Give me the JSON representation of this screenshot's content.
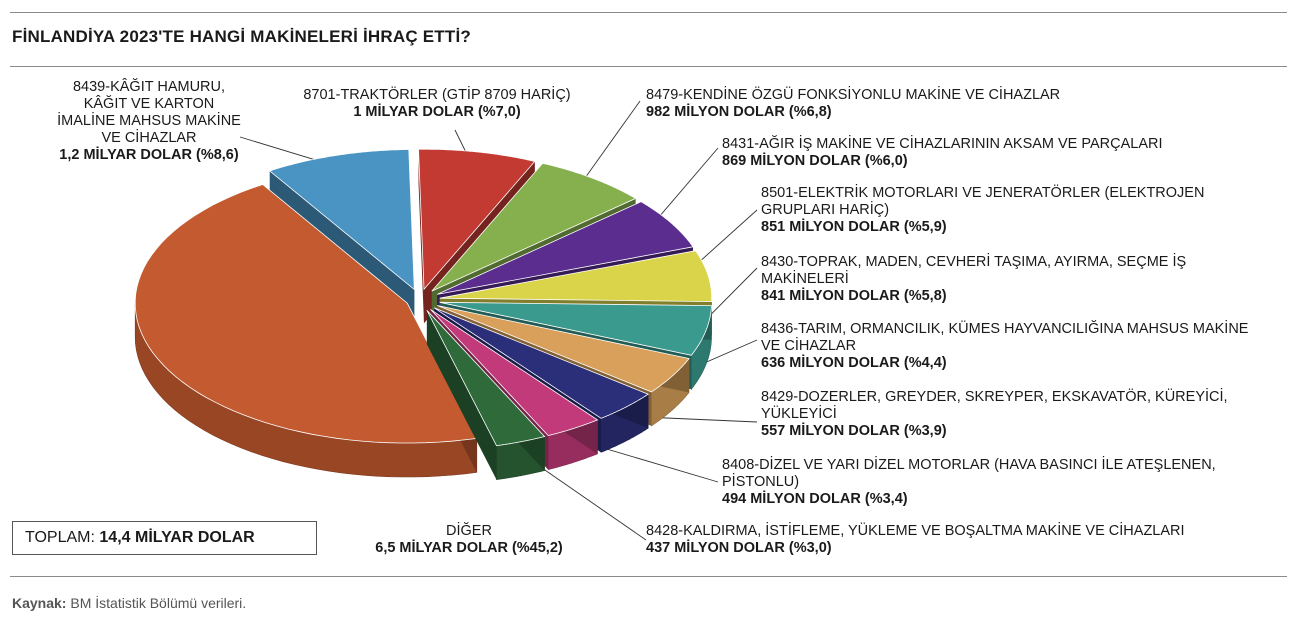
{
  "title": "FİNLANDİYA 2023'TE HANGİ MAKİNELERİ İHRAÇ ETTİ?",
  "total": {
    "label": "TOPLAM:",
    "value": "14,4 MİLYAR DOLAR"
  },
  "source": {
    "label": "Kaynak:",
    "text": "BM İstatistik Bölümü verileri."
  },
  "chart_data": {
    "type": "pie",
    "title": "FİNLANDİYA 2023'TE HANGİ MAKİNELERİ İHRAÇ ETTİ?",
    "unit": "USD",
    "slices": [
      {
        "name": "8701-TRAKTÖRLER (GTİP 8709 HARİÇ)",
        "value_label": "1 MİLYAR DOLAR (%7,0)",
        "value": 1.0,
        "percent": 7.0,
        "color": "#c33a32"
      },
      {
        "name": "8479-KENDİNE ÖZGÜ FONKSİYONLU MAKİNE VE CİHAZLAR",
        "value_label": "982 MİLYON DOLAR (%6,8)",
        "value": 0.982,
        "percent": 6.8,
        "color": "#86b04e"
      },
      {
        "name": "8431-AĞIR İŞ MAKİNE VE CİHAZLARININ AKSAM VE PARÇALARI",
        "value_label": "869 MİLYON DOLAR (%6,0)",
        "value": 0.869,
        "percent": 6.0,
        "color": "#5a2d8f"
      },
      {
        "name": "8501-ELEKTRİK MOTORLARI VE JENERATÖRLER (ELEKTROJEN GRUPLARI HARİÇ)",
        "value_label": "851 MİLYON DOLAR (%5,9)",
        "value": 0.851,
        "percent": 5.9,
        "color": "#d9d44a"
      },
      {
        "name": "8430-TOPRAK, MADEN, CEVHERİ TAŞIMA, AYIRMA, SEÇME İŞ MAKİNELERİ",
        "value_label": "841 MİLYON DOLAR (%5,8)",
        "value": 0.841,
        "percent": 5.8,
        "color": "#3a9a8e"
      },
      {
        "name": "8436-TARIM, ORMANCILIK, KÜMES HAYVANCILIĞINA MAHSUS MAKİNE VE CİHAZLAR",
        "value_label": "636 MİLYON DOLAR (%4,4)",
        "value": 0.636,
        "percent": 4.4,
        "color": "#d8a05a"
      },
      {
        "name": "8429-DOZERLER, GREYDER, SKREYPER, EKSKAVATÖR, KÜREYİCİ, YÜKLEYİCİ",
        "value_label": "557 MİLYON DOLAR (%3,9)",
        "value": 0.557,
        "percent": 3.9,
        "color": "#2b2f7a"
      },
      {
        "name": "8408-DİZEL VE YARI DİZEL MOTORLAR (HAVA BASINCI İLE ATEŞLENEN, PİSTONLU)",
        "value_label": "494 MİLYON DOLAR (%3,4)",
        "value": 0.494,
        "percent": 3.4,
        "color": "#c23a7a"
      },
      {
        "name": "8428-KALDIRMA, İSTİFLEME, YÜKLEME VE BOŞALTMA MAKİNE VE CİHAZLARI",
        "value_label": "437 MİLYON DOLAR (%3,0)",
        "value": 0.437,
        "percent": 3.0,
        "color": "#2e6a3a"
      },
      {
        "name": "DİĞER",
        "value_label": "6,5 MİLYAR DOLAR (%45,2)",
        "value": 6.5,
        "percent": 45.2,
        "color": "#c45a30"
      },
      {
        "name": "8439-KÂĞIT HAMURU, KÂĞIT VE KARTON İMALİNE MAHSUS MAKİNE VE CİHAZLAR",
        "value_label": "1,2 MİLYAR DOLAR (%8,6)",
        "value": 1.2,
        "percent": 8.6,
        "color": "#4a94c4"
      }
    ],
    "extra_slice_color": "#f2ec6a",
    "legend": "none"
  }
}
